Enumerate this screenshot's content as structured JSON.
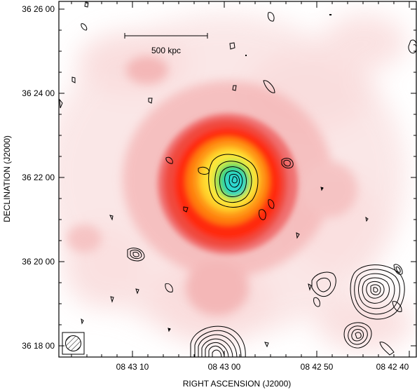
{
  "figure": {
    "y_axis_title": "DECLINATION  (J2000)",
    "x_axis_title": "RIGHT ASCENSION  (J2000)",
    "y_ticks": [
      "36 26 00",
      "36 24 00",
      "36 22 00",
      "36 20 00",
      "36 18 00"
    ],
    "x_ticks": [
      "08 43 10",
      "08 43 00",
      "08 42 50",
      "08 42 40"
    ],
    "scale_bar_label": "500 kpc"
  },
  "colors": {
    "frame": "#000000",
    "contour": "#000000",
    "emission_low": "#f6c8c8",
    "emission_mid": "#f04a3c",
    "emission_high": "#ff2a10",
    "emission_orange": "#ff9a18",
    "emission_yellow": "#ffe73a",
    "emission_green": "#34d26a",
    "emission_cyan": "#2fd8cf"
  }
}
